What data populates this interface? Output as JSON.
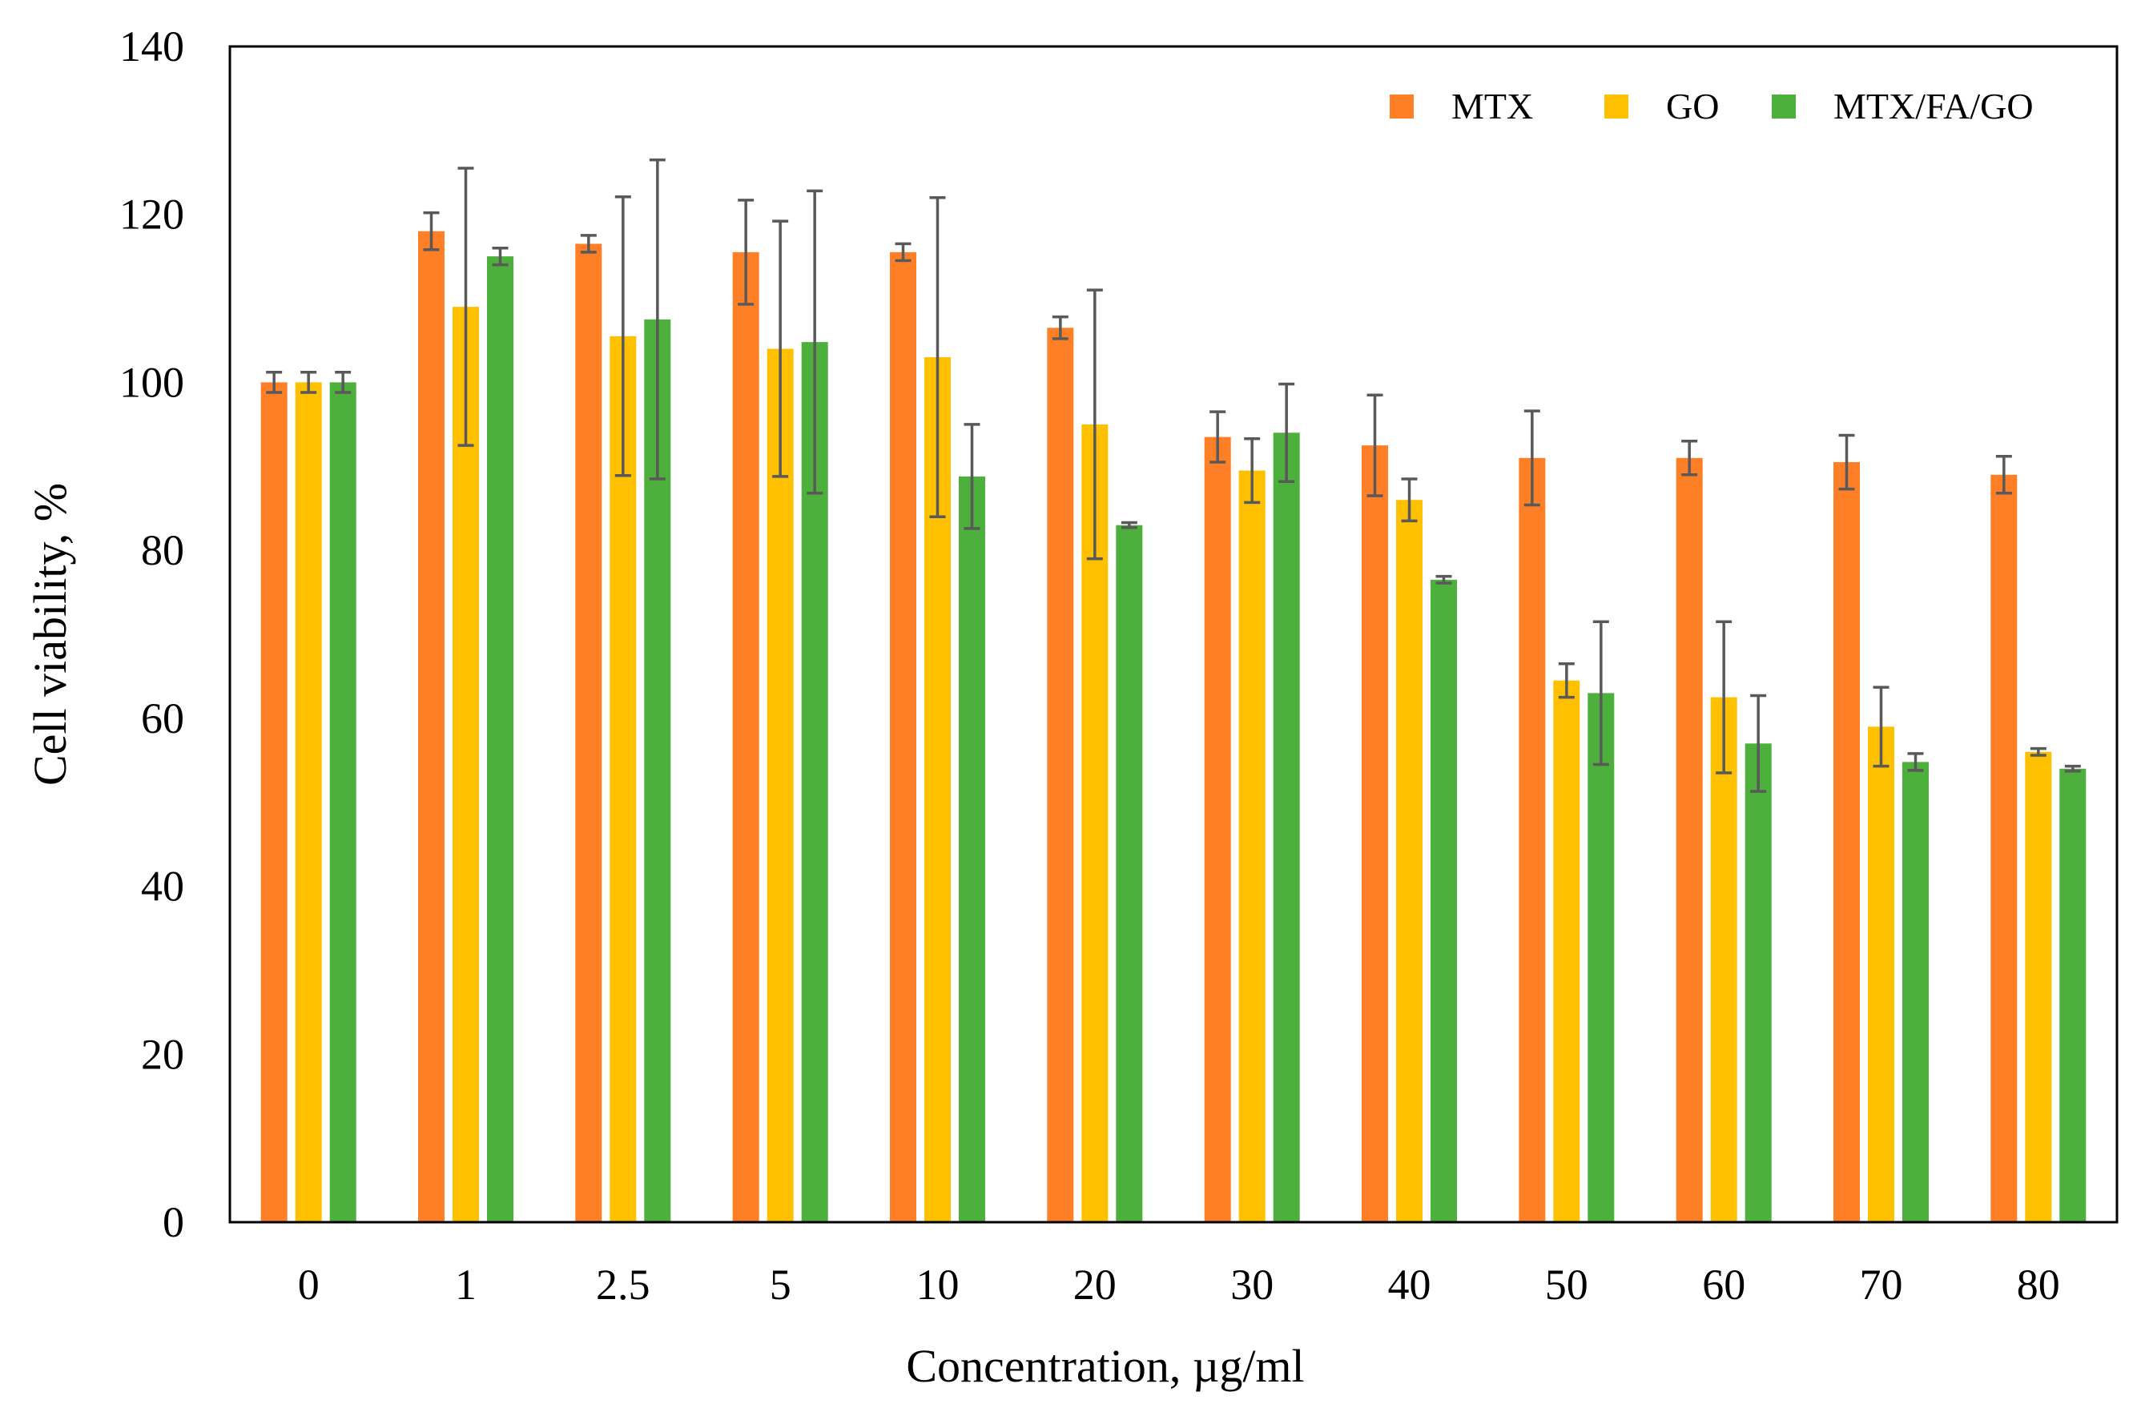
{
  "chart_data": {
    "type": "bar",
    "title": "",
    "xlabel": "Concentration, µg/ml",
    "ylabel": "Cell viability, %",
    "ylim": [
      0,
      140
    ],
    "yticks": [
      0,
      20,
      40,
      60,
      80,
      100,
      120,
      140
    ],
    "categories": [
      "0",
      "1",
      "2.5",
      "5",
      "10",
      "20",
      "30",
      "40",
      "50",
      "60",
      "70",
      "80"
    ],
    "legend_position": "top-right",
    "series": [
      {
        "name": "MTX",
        "color": "#FF7F27",
        "values": [
          100,
          118,
          116.5,
          115.5,
          115.5,
          106.5,
          93.5,
          92.5,
          91,
          91,
          90.5,
          89
        ],
        "errors": [
          1.2,
          2.2,
          1.0,
          6.2,
          1.0,
          1.3,
          3,
          6,
          5.6,
          2,
          3.2,
          2.2
        ]
      },
      {
        "name": "GO",
        "color": "#FFC000",
        "values": [
          100,
          109,
          105.5,
          104,
          103,
          95,
          89.5,
          86,
          64.5,
          62.5,
          59,
          56
        ],
        "errors": [
          1.2,
          16.5,
          16.6,
          15.2,
          19,
          16,
          3.8,
          2.5,
          2,
          9,
          4.7,
          0.4
        ]
      },
      {
        "name": "MTX/FA/GO",
        "color": "#4DAF3C",
        "values": [
          100,
          115,
          107.5,
          104.8,
          88.8,
          83,
          94,
          76.5,
          63,
          57,
          54.8,
          54
        ],
        "errors": [
          1.2,
          1.0,
          19,
          18,
          6.2,
          0.3,
          5.8,
          0.4,
          8.5,
          5.7,
          1.0,
          0.3
        ]
      }
    ]
  }
}
